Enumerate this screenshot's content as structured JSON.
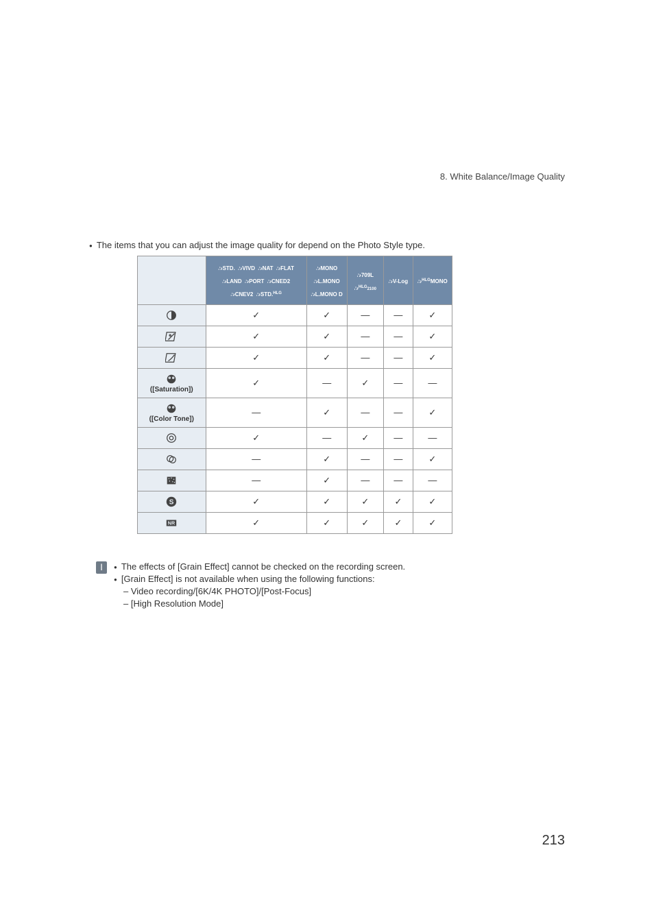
{
  "chapter_heading": "8. White Balance/Image Quality",
  "intro_line": "The items that you can adjust the image quality for depend on the Photo Style type.",
  "page_number": "213",
  "header_groups": {
    "g0": [
      "STD.",
      "VIVD",
      "NAT",
      "FLAT",
      "LAND",
      "PORT",
      "CNED2",
      "CNEV2",
      "STD."
    ],
    "g0_sup_last": "HLG",
    "g1": [
      "MONO",
      "L.MONO",
      "L.MONO D"
    ],
    "g2a": "709L",
    "g2b": "2100",
    "g2b_sup": "HLG",
    "g3": "V-Log",
    "g4": "MONO",
    "g4_sup": "HLG"
  },
  "rows": [
    {
      "key": "contrast",
      "label": "",
      "c": [
        "✓",
        "✓",
        "—",
        "—",
        "✓"
      ]
    },
    {
      "key": "highlight",
      "label": "",
      "c": [
        "✓",
        "✓",
        "—",
        "—",
        "✓"
      ]
    },
    {
      "key": "shadow",
      "label": "",
      "c": [
        "✓",
        "✓",
        "—",
        "—",
        "✓"
      ]
    },
    {
      "key": "saturation",
      "label": "([Saturation])",
      "tall": true,
      "c": [
        "✓",
        "—",
        "✓",
        "—",
        "—"
      ]
    },
    {
      "key": "colortone",
      "label": "([Color Tone])",
      "tall": true,
      "c": [
        "—",
        "✓",
        "—",
        "—",
        "✓"
      ]
    },
    {
      "key": "hue",
      "label": "",
      "c": [
        "✓",
        "—",
        "✓",
        "—",
        "—"
      ]
    },
    {
      "key": "filter",
      "label": "",
      "c": [
        "—",
        "✓",
        "—",
        "—",
        "✓"
      ]
    },
    {
      "key": "grain",
      "label": "",
      "c": [
        "—",
        "✓",
        "—",
        "—",
        "—"
      ]
    },
    {
      "key": "sharp",
      "label": "",
      "c": [
        "✓",
        "✓",
        "✓",
        "✓",
        "✓"
      ]
    },
    {
      "key": "nr",
      "label": "",
      "c": [
        "✓",
        "✓",
        "✓",
        "✓",
        "✓"
      ]
    }
  ],
  "notes": {
    "n1": "The effects of [Grain Effect] cannot be checked on the recording screen.",
    "n2": "[Grain Effect] is not available when using the following functions:",
    "n2a": "– Video recording/[6K/4K PHOTO]/[Post-Focus]",
    "n2b": "– [High Resolution Mode]"
  },
  "colors": {
    "header_bg": "#708aa8",
    "rowhead_bg": "#e7edf3",
    "border": "#999999",
    "text": "#333333",
    "icon": "#444444",
    "note_icon_bg": "#6f7b87"
  }
}
